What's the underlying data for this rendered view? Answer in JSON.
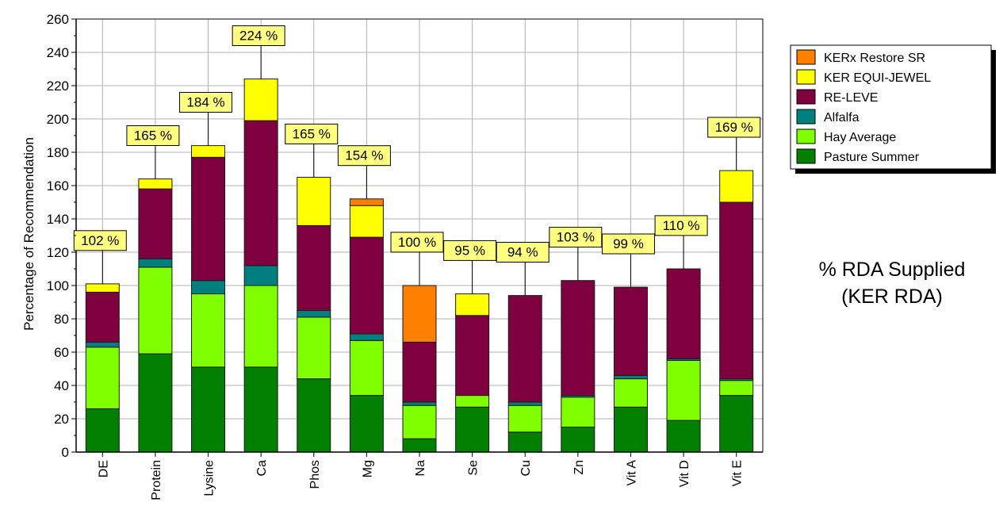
{
  "chart_data": {
    "type": "bar",
    "stacked": true,
    "ylabel": "Percentage of Recommendation",
    "ylim": [
      0,
      260
    ],
    "yticks": [
      0,
      20,
      40,
      60,
      80,
      100,
      120,
      140,
      160,
      180,
      200,
      220,
      240,
      260
    ],
    "grid": true,
    "legend_position": "top-right",
    "side_title": [
      "% RDA Supplied",
      "(KER RDA)"
    ],
    "categories": [
      "DE",
      "Protein",
      "Lysine",
      "Ca",
      "Phos",
      "Mg",
      "Na",
      "Se",
      "Cu",
      "Zn",
      "Vit A",
      "Vit D",
      "Vit E"
    ],
    "totals": [
      "102 %",
      "165 %",
      "184 %",
      "224 %",
      "165 %",
      "154 %",
      "100 %",
      "95 %",
      "94 %",
      "103 %",
      "99 %",
      "110 %",
      "169 %"
    ],
    "series": [
      {
        "name": "Pasture Summer",
        "color": "#007f00",
        "values": [
          26,
          59,
          51,
          51,
          44,
          34,
          8,
          27,
          12,
          15,
          27,
          19,
          34
        ]
      },
      {
        "name": "Hay Average",
        "color": "#7fff00",
        "values": [
          37,
          52,
          44,
          49,
          37,
          33,
          20,
          7,
          16,
          18,
          17,
          36,
          9
        ]
      },
      {
        "name": "Alfalfa",
        "color": "#007f7f",
        "values": [
          3,
          5,
          8,
          12,
          4,
          4,
          2,
          0,
          2,
          1,
          2,
          1,
          1
        ]
      },
      {
        "name": "RE-LEVE",
        "color": "#7f003f",
        "values": [
          30,
          42,
          74,
          87,
          51,
          58,
          36,
          48,
          64,
          69,
          53,
          54,
          106
        ]
      },
      {
        "name": "KER EQUI-JEWEL",
        "color": "#ffff00",
        "values": [
          5,
          6,
          7,
          25,
          29,
          19,
          0,
          13,
          0,
          0,
          0,
          0,
          19
        ]
      },
      {
        "name": "KERx Restore SR",
        "color": "#ff7f00",
        "values": [
          0,
          0,
          0,
          0,
          0,
          4,
          34,
          0,
          0,
          0,
          0,
          0,
          0
        ]
      }
    ]
  }
}
